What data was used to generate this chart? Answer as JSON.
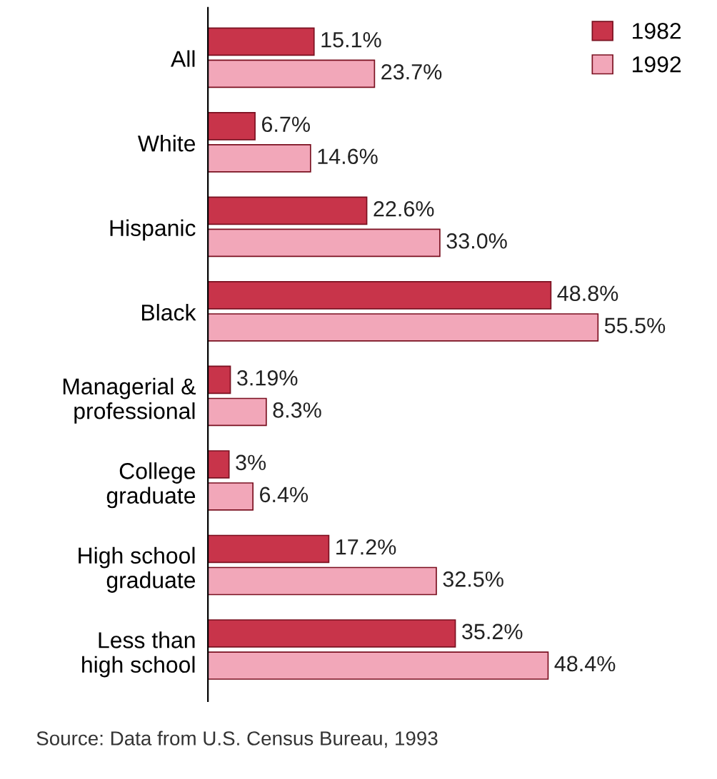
{
  "chart_data": {
    "type": "bar",
    "orientation": "horizontal",
    "categories": [
      "All",
      "White",
      "Hispanic",
      "Black",
      "Managerial &\nprofessional",
      "College\ngraduate",
      "High school\ngraduate",
      "Less than\nhigh school"
    ],
    "series": [
      {
        "name": "1982",
        "color": "#c8344a",
        "values": [
          15.1,
          6.7,
          22.6,
          48.8,
          3.19,
          3,
          17.2,
          35.2
        ],
        "value_labels": [
          "15.1%",
          "6.7%",
          "22.6%",
          "48.8%",
          "3.19%",
          "3%",
          "17.2%",
          "35.2%"
        ]
      },
      {
        "name": "1992",
        "color": "#f2a7b9",
        "values": [
          23.7,
          14.6,
          33.0,
          55.5,
          8.3,
          6.4,
          32.5,
          48.4
        ],
        "value_labels": [
          "23.7%",
          "14.6%",
          "33.0%",
          "55.5%",
          "8.3%",
          "6.4%",
          "32.5%",
          "48.4%"
        ]
      }
    ],
    "legend": "top right",
    "grid": false,
    "annotations": [
      "Source: Data from U.S. Census Bureau, 1993"
    ]
  }
}
